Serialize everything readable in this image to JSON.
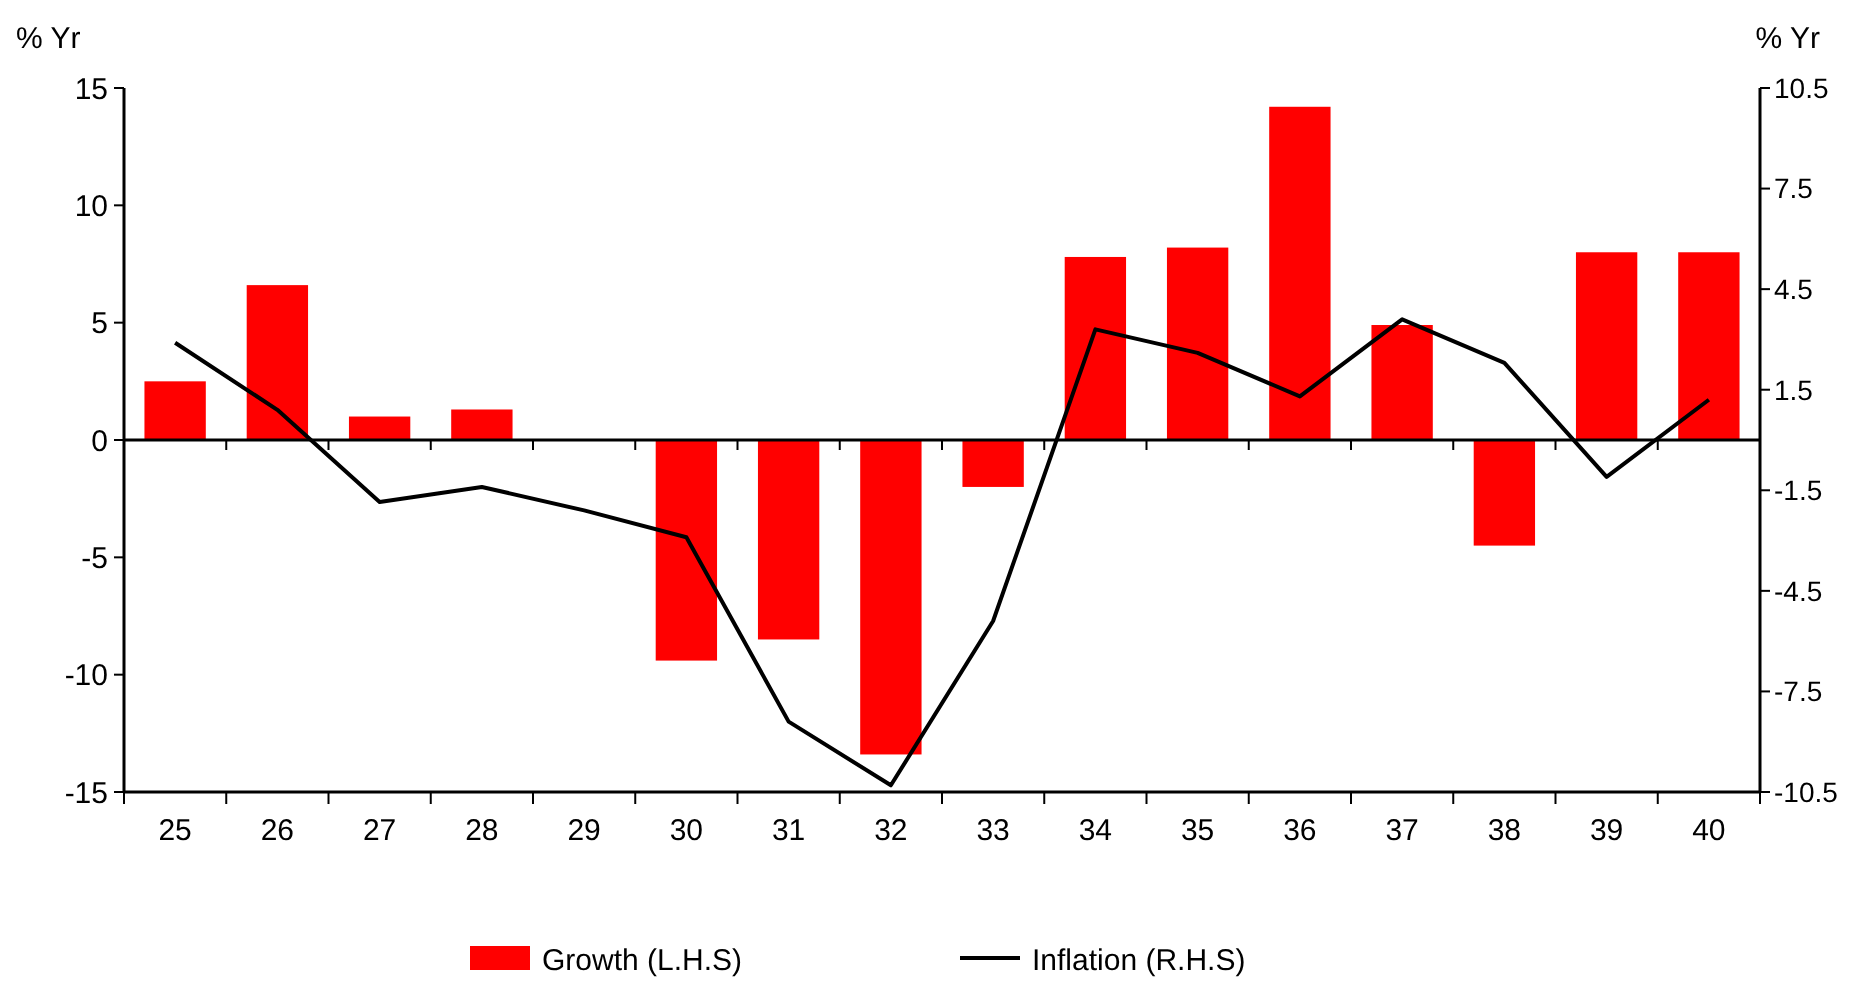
{
  "chart_data": {
    "type": "bar",
    "ylabel": "% Yr",
    "y2label": "% Yr",
    "categories": [
      "25",
      "26",
      "27",
      "28",
      "29",
      "30",
      "31",
      "32",
      "33",
      "34",
      "35",
      "36",
      "37",
      "38",
      "39",
      "40"
    ],
    "series": [
      {
        "name": "Growth (L.H.S)",
        "color": "#ff0000",
        "values": [
          2.5,
          6.6,
          1.0,
          1.3,
          0,
          -9.4,
          -8.5,
          -13.4,
          -2.0,
          7.8,
          8.2,
          14.2,
          4.9,
          -4.5,
          8.0,
          8.0
        ]
      },
      {
        "name": "Inflation (R.H.S)",
        "type": "line",
        "axis": "y2",
        "color": "#000000",
        "values": [
          2.9,
          0.9,
          -1.85,
          -1.4,
          -2.1,
          -2.9,
          -8.4,
          -10.3,
          -5.4,
          3.3,
          2.6,
          1.3,
          3.6,
          2.3,
          -1.1,
          1.2
        ]
      }
    ],
    "ylim": [
      -15,
      15
    ],
    "yticks": [
      -15,
      -10,
      -5,
      0,
      5,
      10,
      15
    ],
    "y2lim": [
      -10.5,
      10.5
    ],
    "y2ticks": [
      -10.5,
      -7.5,
      -4.5,
      -1.5,
      1.5,
      4.5,
      7.5,
      10.5
    ],
    "legend": "bottom",
    "marker": "none",
    "line_style": "solid"
  }
}
